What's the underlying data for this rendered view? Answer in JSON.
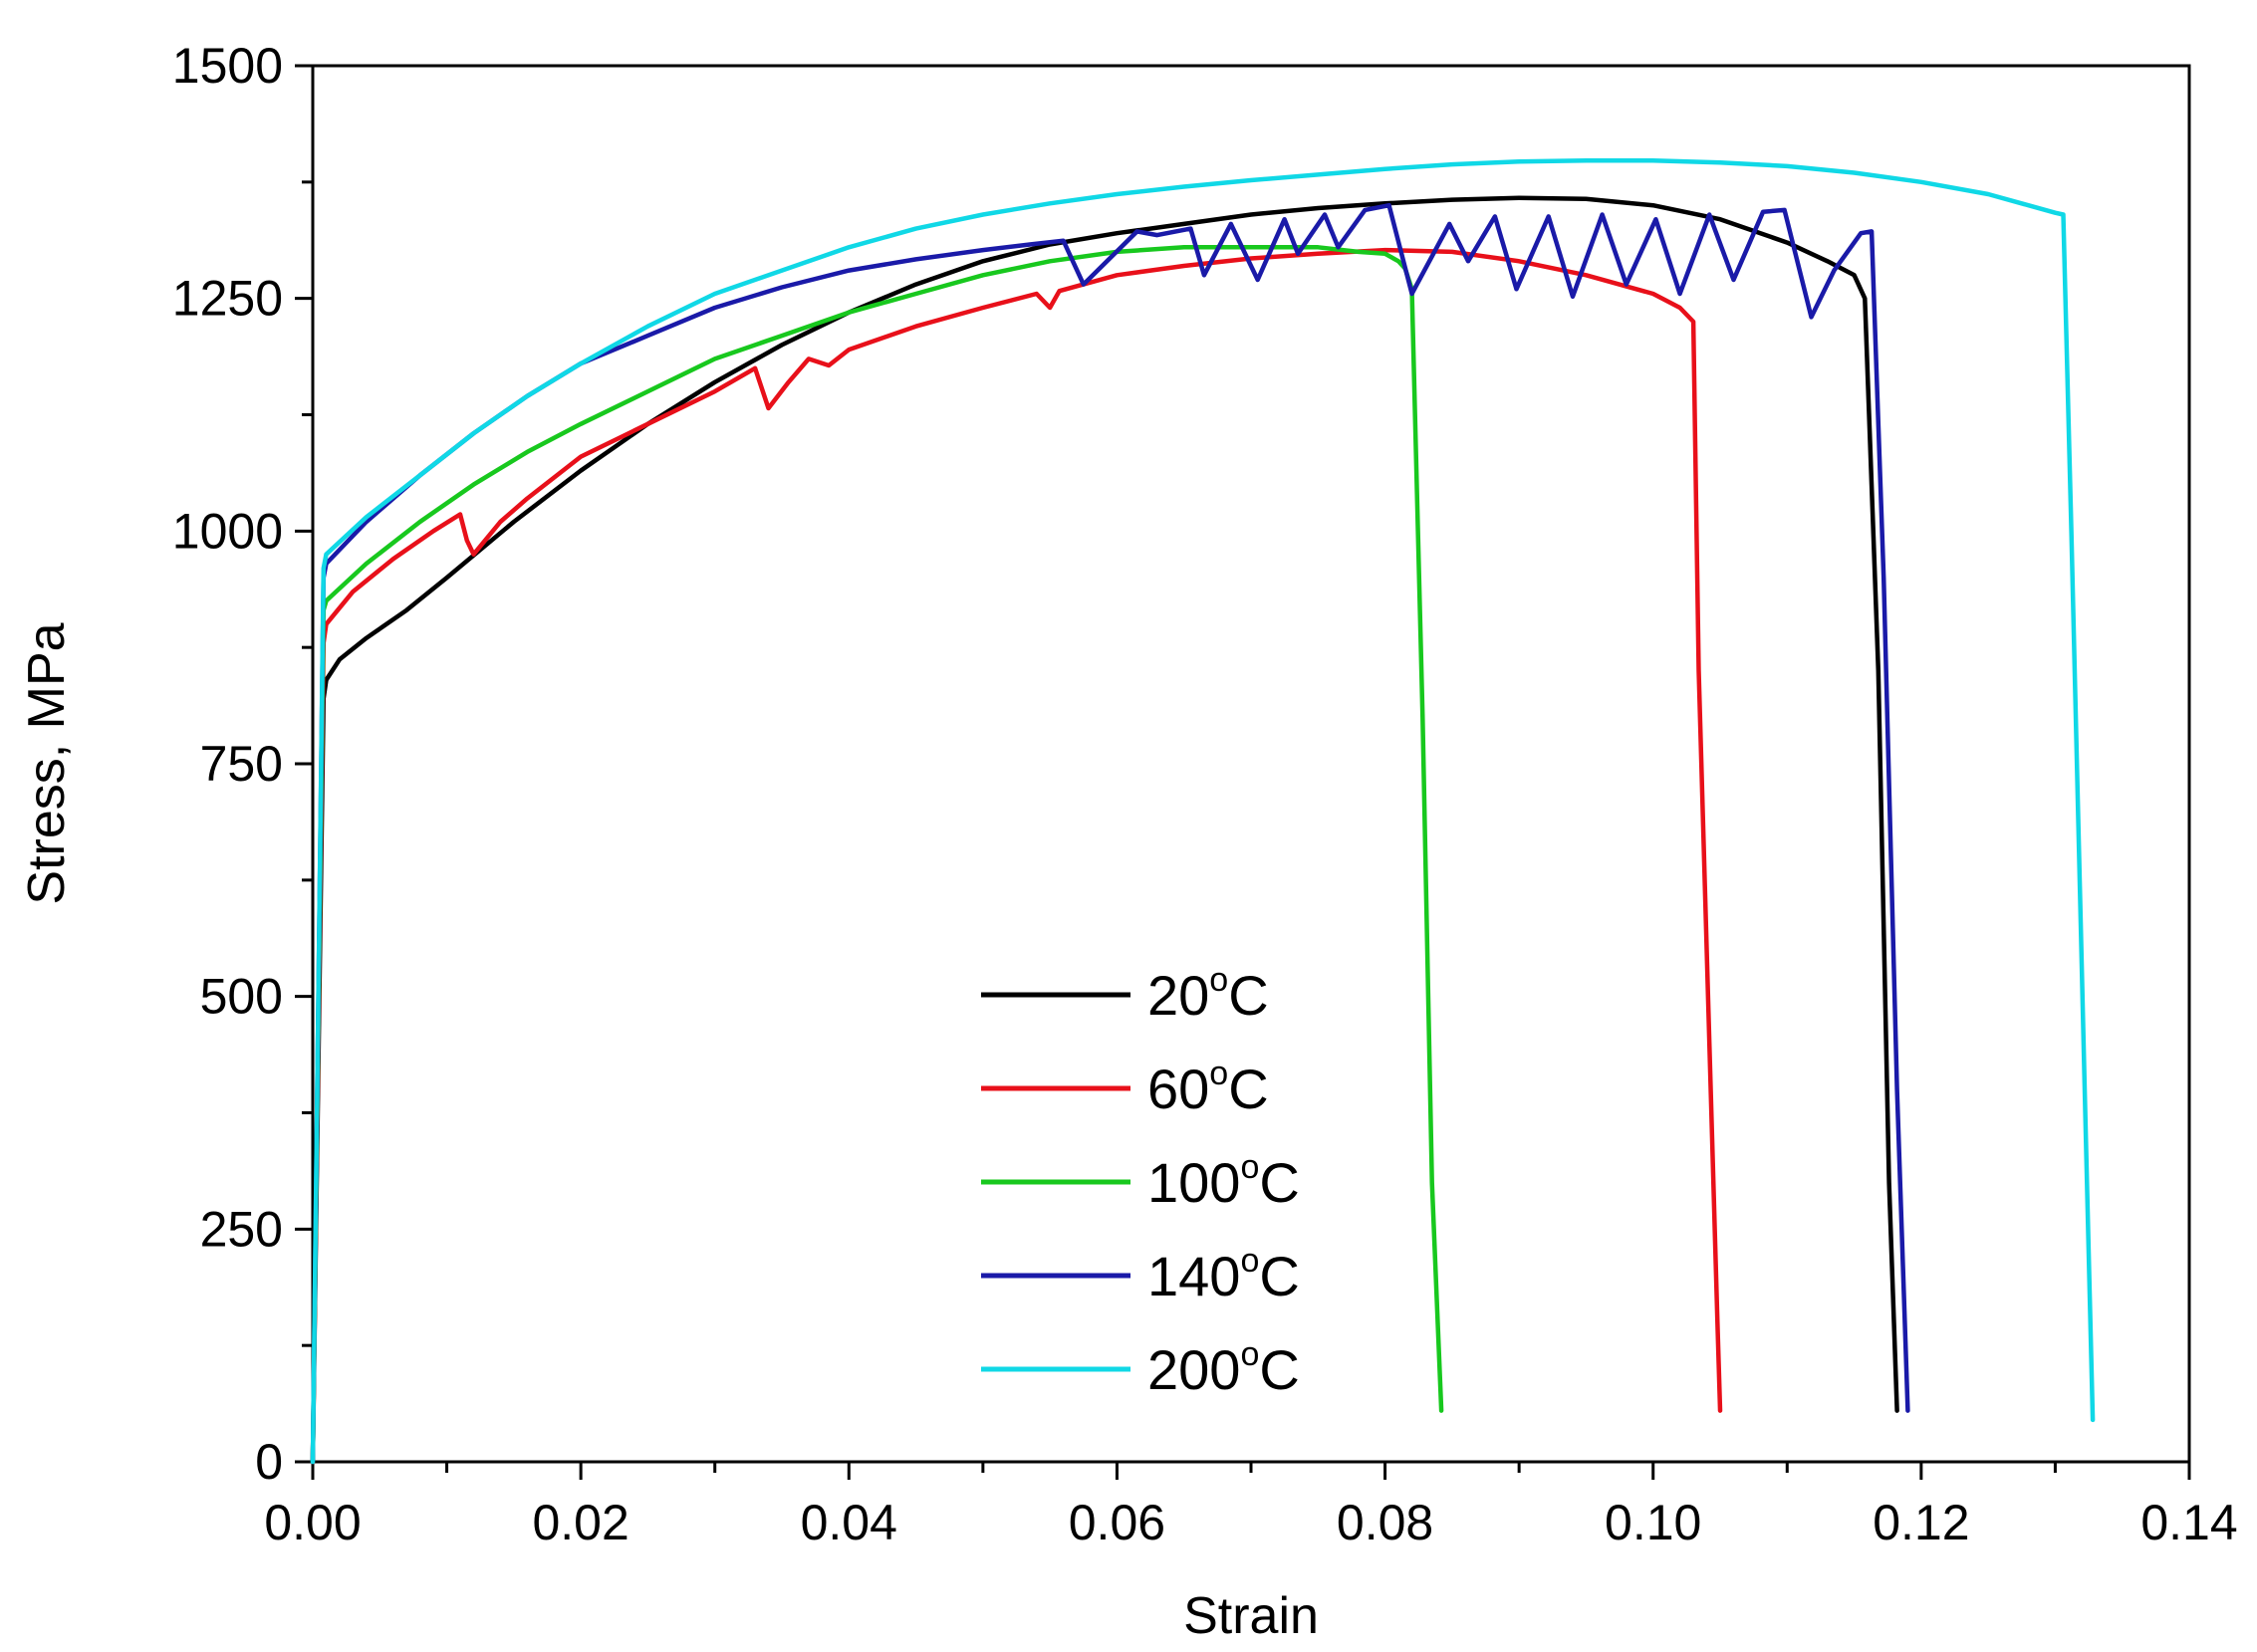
{
  "chart_data": {
    "type": "line",
    "title": "",
    "xlabel": "Strain",
    "ylabel": "Stress, MPa",
    "xlim": [
      0,
      0.14
    ],
    "ylim": [
      0,
      1500
    ],
    "x_ticks": [
      0.0,
      0.02,
      0.04,
      0.06,
      0.08,
      0.1,
      0.12,
      0.14
    ],
    "x_tick_labels": [
      "0.00",
      "0.02",
      "0.04",
      "0.06",
      "0.08",
      "0.10",
      "0.12",
      "0.14"
    ],
    "y_ticks": [
      0,
      250,
      500,
      750,
      1000,
      1250,
      1500
    ],
    "y_tick_labels": [
      "0",
      "250",
      "500",
      "750",
      "1000",
      "1250",
      "1500"
    ],
    "grid": false,
    "legend_position": "lower-center",
    "series": [
      {
        "name": "20°C",
        "temp": "20",
        "unit": "C",
        "color": "#000000",
        "x": [
          0,
          0.0008,
          0.001,
          0.002,
          0.004,
          0.007,
          0.01,
          0.015,
          0.02,
          0.025,
          0.03,
          0.035,
          0.04,
          0.045,
          0.05,
          0.055,
          0.06,
          0.065,
          0.07,
          0.075,
          0.08,
          0.085,
          0.09,
          0.095,
          0.1,
          0.105,
          0.11,
          0.113,
          0.115,
          0.1158,
          0.1168,
          0.1176,
          0.1182
        ],
        "y": [
          0,
          820,
          840,
          862,
          885,
          915,
          950,
          1010,
          1065,
          1115,
          1160,
          1200,
          1235,
          1265,
          1290,
          1308,
          1320,
          1330,
          1340,
          1347,
          1352,
          1356,
          1358,
          1357,
          1350,
          1335,
          1310,
          1290,
          1275,
          1250,
          850,
          300,
          55
        ]
      },
      {
        "name": "60°C",
        "temp": "60",
        "unit": "C",
        "color": "#e8101a",
        "x": [
          0,
          0.0008,
          0.001,
          0.003,
          0.006,
          0.009,
          0.011,
          0.0115,
          0.012,
          0.014,
          0.016,
          0.02,
          0.025,
          0.03,
          0.033,
          0.034,
          0.0355,
          0.037,
          0.0385,
          0.04,
          0.045,
          0.05,
          0.054,
          0.055,
          0.0557,
          0.06,
          0.065,
          0.07,
          0.075,
          0.08,
          0.085,
          0.09,
          0.095,
          0.1,
          0.102,
          0.103,
          0.1034,
          0.1042,
          0.1048,
          0.105
        ],
        "y": [
          0,
          880,
          900,
          935,
          970,
          1000,
          1018,
          990,
          975,
          1010,
          1035,
          1080,
          1115,
          1150,
          1175,
          1132,
          1160,
          1185,
          1178,
          1195,
          1220,
          1240,
          1255,
          1240,
          1258,
          1275,
          1285,
          1293,
          1298,
          1302,
          1300,
          1290,
          1275,
          1255,
          1240,
          1225,
          850,
          450,
          150,
          55
        ]
      },
      {
        "name": "100°C",
        "temp": "100",
        "unit": "C",
        "color": "#18c81e",
        "x": [
          0,
          0.0008,
          0.001,
          0.004,
          0.008,
          0.012,
          0.016,
          0.02,
          0.025,
          0.03,
          0.035,
          0.04,
          0.045,
          0.05,
          0.055,
          0.06,
          0.065,
          0.07,
          0.075,
          0.078,
          0.08,
          0.081,
          0.0815,
          0.082,
          0.0828,
          0.0835,
          0.0842
        ],
        "y": [
          0,
          915,
          925,
          965,
          1010,
          1050,
          1085,
          1115,
          1150,
          1185,
          1210,
          1235,
          1255,
          1275,
          1290,
          1300,
          1305,
          1305,
          1305,
          1300,
          1298,
          1290,
          1282,
          1260,
          800,
          300,
          55
        ]
      },
      {
        "name": "140°C",
        "temp": "140",
        "unit": "C",
        "color": "#1a1aa8",
        "x": [
          0,
          0.0008,
          0.001,
          0.004,
          0.008,
          0.012,
          0.016,
          0.02,
          0.025,
          0.03,
          0.035,
          0.04,
          0.045,
          0.05,
          0.0535,
          0.056,
          0.0575,
          0.0615,
          0.063,
          0.0655,
          0.0665,
          0.0685,
          0.0705,
          0.0725,
          0.0735,
          0.0755,
          0.0765,
          0.0785,
          0.0803,
          0.082,
          0.0848,
          0.0862,
          0.0882,
          0.0898,
          0.0922,
          0.094,
          0.0962,
          0.098,
          0.1002,
          0.102,
          0.1042,
          0.106,
          0.1082,
          0.1098,
          0.1118,
          0.1135,
          0.1155,
          0.1163,
          0.1172,
          0.1182,
          0.119
        ],
        "y": [
          0,
          950,
          965,
          1010,
          1060,
          1105,
          1145,
          1180,
          1210,
          1240,
          1262,
          1280,
          1292,
          1302,
          1308,
          1312,
          1265,
          1322,
          1318,
          1325,
          1275,
          1330,
          1270,
          1335,
          1298,
          1340,
          1305,
          1345,
          1350,
          1255,
          1330,
          1290,
          1338,
          1260,
          1338,
          1252,
          1340,
          1265,
          1335,
          1255,
          1340,
          1270,
          1343,
          1345,
          1230,
          1280,
          1320,
          1322,
          950,
          400,
          55
        ]
      },
      {
        "name": "200°C",
        "temp": "200",
        "unit": "C",
        "color": "#10d8e6",
        "x": [
          0,
          0.0008,
          0.001,
          0.004,
          0.008,
          0.012,
          0.016,
          0.02,
          0.025,
          0.03,
          0.035,
          0.04,
          0.045,
          0.05,
          0.055,
          0.06,
          0.065,
          0.07,
          0.075,
          0.08,
          0.085,
          0.09,
          0.095,
          0.1,
          0.105,
          0.11,
          0.115,
          0.12,
          0.125,
          0.128,
          0.13,
          0.1306,
          0.1312,
          0.1322,
          0.1328
        ],
        "y": [
          0,
          960,
          975,
          1015,
          1060,
          1105,
          1145,
          1180,
          1220,
          1255,
          1280,
          1305,
          1325,
          1340,
          1352,
          1362,
          1370,
          1377,
          1383,
          1389,
          1394,
          1397,
          1398,
          1398,
          1396,
          1392,
          1385,
          1375,
          1362,
          1350,
          1342,
          1340,
          1000,
          400,
          45
        ]
      }
    ]
  }
}
